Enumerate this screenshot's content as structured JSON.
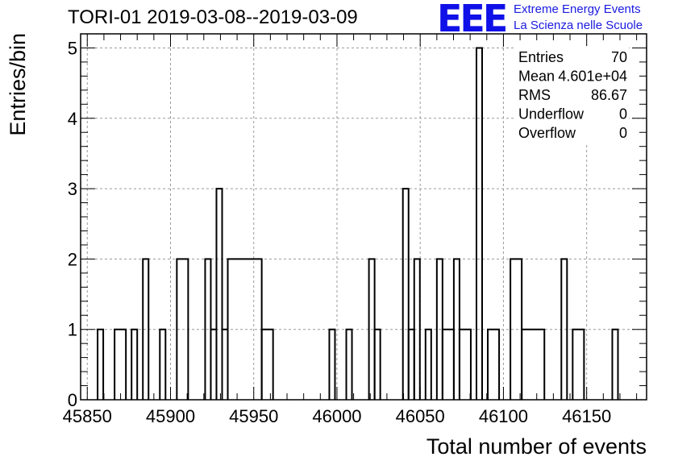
{
  "title": "TORI-01 2019-03-08--2019-03-09",
  "logo": {
    "mark": "EEE",
    "line1": "Extreme Energy Events",
    "line2": "La Scienza nelle Scuole",
    "color": "#1a1ae0"
  },
  "chart_data": {
    "type": "histogram",
    "title": "TORI-01 2019-03-08--2019-03-09",
    "xlabel": "Total number of events",
    "ylabel": "Entries/bin",
    "xlim": [
      45846,
      46186
    ],
    "ylim": [
      0,
      5.2
    ],
    "bin_width": 3.4,
    "grid": true,
    "x_ticks": [
      45850,
      45900,
      45950,
      46000,
      46050,
      46100,
      46150
    ],
    "y_ticks": [
      0,
      1,
      2,
      3,
      4,
      5
    ],
    "bins": [
      {
        "x0": 45856.2,
        "x1": 45859.6,
        "y": 1
      },
      {
        "x0": 45866.4,
        "x1": 45873.2,
        "y": 1
      },
      {
        "x0": 45876.6,
        "x1": 45880.0,
        "y": 1
      },
      {
        "x0": 45883.4,
        "x1": 45886.8,
        "y": 2
      },
      {
        "x0": 45893.6,
        "x1": 45897.0,
        "y": 1
      },
      {
        "x0": 45903.8,
        "x1": 45910.6,
        "y": 2
      },
      {
        "x0": 45920.8,
        "x1": 45924.2,
        "y": 2
      },
      {
        "x0": 45924.2,
        "x1": 45927.6,
        "y": 1
      },
      {
        "x0": 45927.6,
        "x1": 45931.0,
        "y": 3
      },
      {
        "x0": 45931.0,
        "x1": 45934.4,
        "y": 1
      },
      {
        "x0": 45934.4,
        "x1": 45954.8,
        "y": 2
      },
      {
        "x0": 45954.8,
        "x1": 45961.6,
        "y": 1
      },
      {
        "x0": 45995.4,
        "x1": 45998.8,
        "y": 1
      },
      {
        "x0": 46005.6,
        "x1": 46009.0,
        "y": 1
      },
      {
        "x0": 46019.2,
        "x1": 46022.6,
        "y": 2
      },
      {
        "x0": 46022.6,
        "x1": 46026.0,
        "y": 1
      },
      {
        "x0": 46039.6,
        "x1": 46043.0,
        "y": 3
      },
      {
        "x0": 46043.0,
        "x1": 46046.4,
        "y": 1
      },
      {
        "x0": 46046.4,
        "x1": 46049.8,
        "y": 2
      },
      {
        "x0": 46053.2,
        "x1": 46056.6,
        "y": 1
      },
      {
        "x0": 46060.0,
        "x1": 46063.4,
        "y": 2
      },
      {
        "x0": 46063.4,
        "x1": 46070.2,
        "y": 1
      },
      {
        "x0": 46070.2,
        "x1": 46073.6,
        "y": 2
      },
      {
        "x0": 46073.6,
        "x1": 46080.4,
        "y": 1
      },
      {
        "x0": 46083.8,
        "x1": 46087.2,
        "y": 5
      },
      {
        "x0": 46090.6,
        "x1": 46097.4,
        "y": 1
      },
      {
        "x0": 46104.2,
        "x1": 46111.0,
        "y": 2
      },
      {
        "x0": 46111.0,
        "x1": 46124.6,
        "y": 1
      },
      {
        "x0": 46134.8,
        "x1": 46138.2,
        "y": 2
      },
      {
        "x0": 46141.6,
        "x1": 46148.4,
        "y": 1
      },
      {
        "x0": 46165.4,
        "x1": 46168.8,
        "y": 1
      }
    ],
    "stats": [
      {
        "label": "Entries",
        "value": "70"
      },
      {
        "label": "Mean",
        "value": "4.601e+04"
      },
      {
        "label": "RMS",
        "value": "86.67"
      },
      {
        "label": "Underflow",
        "value": "0"
      },
      {
        "label": "Overflow",
        "value": "0"
      }
    ]
  }
}
